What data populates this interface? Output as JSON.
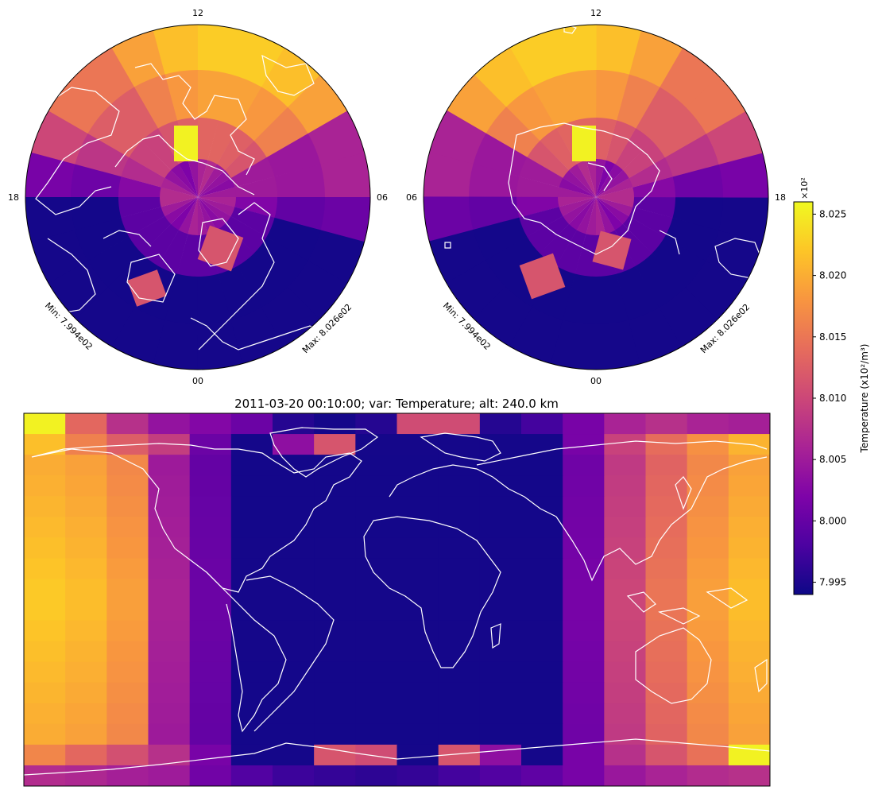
{
  "title": "2011-03-20 00:10:00; var: Temperature; alt: 240.0 km",
  "north_polar": {
    "lt_labels": {
      "top": "12",
      "bottom": "00",
      "left": "18",
      "right": "06"
    },
    "min_label": "Min: 7.994e02",
    "max_label": "Max: 8.026e02"
  },
  "south_polar": {
    "lt_labels": {
      "top": "12",
      "bottom": "00",
      "left": "06",
      "right": "18"
    },
    "min_label": "Min: 7.994e02",
    "max_label": "Max: 8.026e02"
  },
  "colorbar": {
    "label": "Temperature (x10²/m³)",
    "multiplier": "×10²",
    "min": 7.994,
    "max": 8.026,
    "ticks": [
      "7.995",
      "8.000",
      "8.005",
      "8.010",
      "8.015",
      "8.020",
      "8.025"
    ],
    "colormap": "plasma"
  },
  "chart_data": {
    "type": "heatmap",
    "variable": "Temperature",
    "time": "2011-03-20 00:10:00",
    "altitude_km": 240.0,
    "units": "x10^2 /m^3",
    "vmin": 7.994,
    "vmax": 8.026,
    "columns": 18,
    "rows": 18,
    "column_values": [
      8.0225,
      8.0215,
      8.019,
      8.006,
      8.0005,
      7.9945,
      7.9945,
      7.9945,
      7.9945,
      7.9945,
      7.9945,
      7.9945,
      7.9945,
      8.0015,
      8.01,
      8.015,
      8.019,
      8.0215
    ],
    "top_row_values": [
      8.0255,
      8.0135,
      8.0075,
      8.004,
      8.0025,
      8.0005,
      7.9955,
      7.9945,
      7.9955,
      8.0105,
      8.0105,
      7.9955,
      7.9975,
      8.0015,
      8.006,
      8.0075,
      8.006,
      8.0055
    ],
    "row2_values": [
      8.0215,
      8.016,
      8.0125,
      8.009,
      8.0005,
      7.9945,
      7.9945,
      7.9945,
      7.9945,
      7.9945,
      7.9945,
      7.9945,
      7.9945,
      8.0015,
      8.0095,
      8.014,
      8.0175,
      8.0205
    ],
    "bottom_row2_values": [
      8.0165,
      8.0135,
      8.011,
      8.0075,
      8.0015,
      7.9945,
      7.9945,
      8.0115,
      8.0105,
      7.9945,
      7.9945,
      7.9945,
      7.9945,
      8.0015,
      8.0075,
      8.0115,
      8.0145,
      8.0255
    ],
    "bottom_row_values": [
      8.007,
      8.0065,
      8.0055,
      8.005,
      8.001,
      7.9985,
      7.997,
      7.9965,
      7.996,
      7.9965,
      7.9975,
      7.9985,
      7.9995,
      8.0015,
      8.0045,
      8.006,
      8.007,
      8.0075
    ],
    "extra_cells": [
      {
        "row": 1,
        "col": 6,
        "value": 8.0035
      },
      {
        "row": 1,
        "col": 7,
        "value": 8.0115
      },
      {
        "row": 16,
        "col": 10,
        "value": 8.0115
      },
      {
        "row": 16,
        "col": 11,
        "value": 8.0035
      }
    ],
    "polar_rings": [
      {
        "name": "inner",
        "values": [
          8.006,
          8.004,
          8.002,
          8.003,
          8.005,
          8.007,
          8.007,
          8.006,
          8.004,
          8.003,
          8.002,
          8.004,
          8.006,
          8.007,
          8.005,
          8.004,
          8.003,
          8.005,
          8.006,
          8.005,
          8.004,
          8.003,
          8.004,
          8.005
        ]
      }
    ]
  }
}
